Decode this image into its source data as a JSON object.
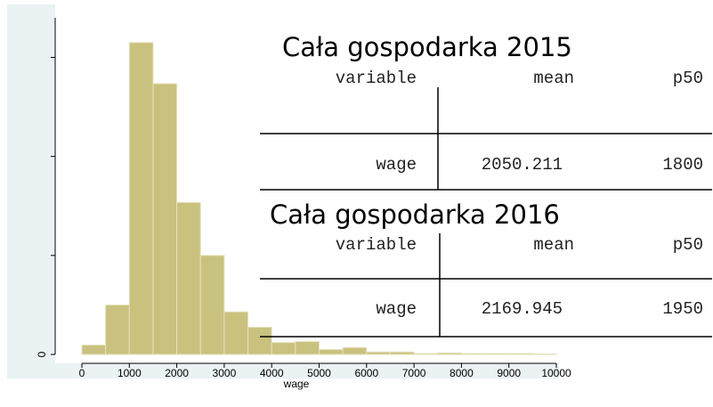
{
  "chart_data": {
    "type": "histogram",
    "xlabel": "wage",
    "bins": [
      0,
      500,
      1000,
      1500,
      2000,
      2500,
      3000,
      3500,
      4000,
      4500,
      5000,
      5500,
      6000,
      6500,
      7000,
      7500,
      8000,
      8500,
      9000,
      9500,
      10000
    ],
    "values": [
      1.9e-05,
      0.0001,
      0.00063,
      0.000547,
      0.000307,
      0.0002,
      8.6e-05,
      5.5e-05,
      2.4e-05,
      2.6e-05,
      1e-05,
      1.4e-05,
      5e-06,
      5e-06,
      2e-06,
      3e-06,
      2e-06,
      2e-06,
      2e-06,
      1e-06
    ],
    "color": "#c9c27e",
    "xlim": [
      0,
      10000
    ],
    "xticks": [
      0,
      1000,
      2000,
      3000,
      4000,
      5000,
      6000,
      7000,
      8000,
      9000,
      10000
    ],
    "ylim": [
      0,
      0.00068
    ],
    "yticks": [
      0,
      0.0002,
      0.0004,
      0.0006
    ]
  },
  "tables": [
    {
      "title": "Cała gospodarka 2015",
      "columns": [
        "variable",
        "mean",
        "p50"
      ],
      "rows": [
        [
          "wage",
          "2050.211",
          "1800"
        ]
      ]
    },
    {
      "title": "Cała gospodarka 2016",
      "columns": [
        "variable",
        "mean",
        "p50"
      ],
      "rows": [
        [
          "wage",
          "2169.945",
          "1950"
        ]
      ]
    }
  ]
}
